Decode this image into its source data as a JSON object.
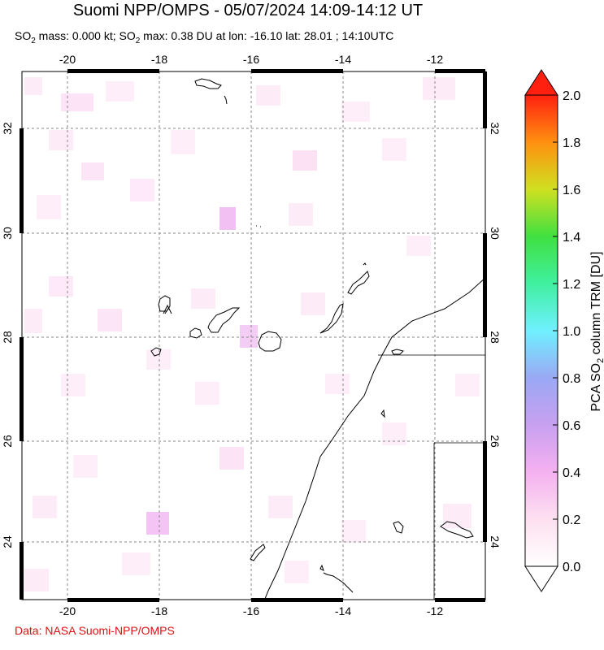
{
  "title": "Suomi NPP/OMPS - 05/07/2024 14:09-14:12 UT",
  "subtitle": {
    "so2_mass_label": "SO",
    "so2_mass_rest": " mass: 0.000 kt; SO",
    "so2_max_rest": " max: 0.38 DU at lon: -16.10 lat: 28.01 ; 14:10UTC",
    "subscript": "2"
  },
  "credit": "Data: NASA Suomi-NPP/OMPS",
  "map": {
    "lon_ticks": [
      "-20",
      "-18",
      "-16",
      "-14",
      "-12"
    ],
    "lat_ticks": [
      "32",
      "30",
      "28",
      "26",
      "24"
    ],
    "lon_range": [
      -21.0,
      -10.8
    ],
    "lat_range": [
      22.9,
      33.2
    ]
  },
  "colorbar": {
    "label": "PCA SO",
    "label_sub": "2",
    "label_rest": " column TRM [DU]",
    "ticks": [
      "2.0",
      "1.8",
      "1.6",
      "1.4",
      "1.2",
      "1.0",
      "0.8",
      "0.6",
      "0.4",
      "0.2",
      "0.0"
    ],
    "range": [
      0.0,
      2.0
    ]
  },
  "colors": {
    "credit": "#e01010",
    "grid": "#888888"
  }
}
